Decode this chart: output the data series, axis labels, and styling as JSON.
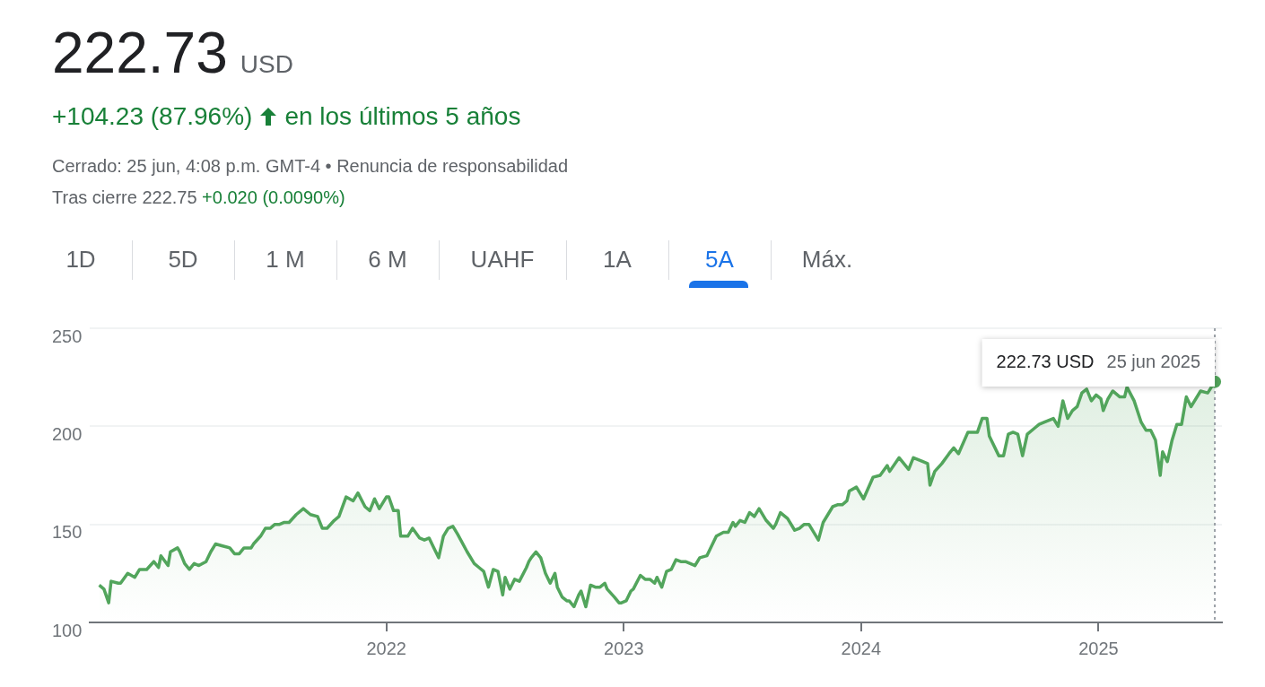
{
  "chart_data": {
    "type": "area",
    "title": "222.73 USD",
    "subtitle": "+104.23 (87.96%)",
    "annotations": [
      "en los últimos 5 años",
      "Cerrado: 25 jun, 4:08 p.m. GMT-4 • Renuncia de responsabilidad",
      "Tras cierre 222.75",
      "+0.020 (0.0090%)",
      "1D",
      "5D",
      "1 M",
      "6 M",
      "UAHF",
      "1A",
      "5A",
      "Máx.",
      "222.73 USD",
      "25 jun 2025"
    ],
    "series": [
      {
        "color": "#52a55c",
        "x": [
          2020.79,
          2020.81,
          2020.83,
          2020.84,
          2020.87,
          2020.88,
          2020.91,
          2020.94,
          2020.96,
          2020.99,
          2021.02,
          2021.04,
          2021.05,
          2021.08,
          2021.09,
          2021.12,
          2021.13,
          2021.15,
          2021.17,
          2021.19,
          2021.21,
          2021.24,
          2021.26,
          2021.28,
          2021.31,
          2021.34,
          2021.36,
          2021.38,
          2021.4,
          2021.43,
          2021.44,
          2021.47,
          2021.49,
          2021.51,
          2021.53,
          2021.55,
          2021.57,
          2021.59,
          2021.62,
          2021.65,
          2021.68,
          2021.71,
          2021.73,
          2021.75,
          2021.78,
          2021.8,
          2021.83,
          2021.86,
          2021.88,
          2021.91,
          2021.93,
          2021.95,
          2021.97,
          2022.0,
          2022.01,
          2022.03,
          2022.05,
          2022.06,
          2022.09,
          2022.11,
          2022.14,
          2022.16,
          2022.18,
          2022.2,
          2022.22,
          2022.24,
          2022.26,
          2022.28,
          2022.3,
          2022.34,
          2022.37,
          2022.39,
          2022.41,
          2022.43,
          2022.45,
          2022.47,
          2022.49,
          2022.5,
          2022.52,
          2022.54,
          2022.56,
          2022.59,
          2022.6,
          2022.61,
          2022.63,
          2022.65,
          2022.67,
          2022.69,
          2022.71,
          2022.72,
          2022.74,
          2022.76,
          2022.77,
          2022.79,
          2022.81,
          2022.82,
          2022.84,
          2022.86,
          2022.88,
          2022.9,
          2022.92,
          2022.93,
          2022.96,
          2022.98,
          2022.99,
          2023.01,
          2023.03,
          2023.04,
          2023.07,
          2023.09,
          2023.11,
          2023.13,
          2023.14,
          2023.16,
          2023.18,
          2023.2,
          2023.22,
          2023.24,
          2023.26,
          2023.3,
          2023.32,
          2023.35,
          2023.39,
          2023.42,
          2023.44,
          2023.46,
          2023.47,
          2023.49,
          2023.51,
          2023.53,
          2023.55,
          2023.57,
          2023.6,
          2023.63,
          2023.64,
          2023.66,
          2023.69,
          2023.72,
          2023.74,
          2023.76,
          2023.78,
          2023.82,
          2023.84,
          2023.88,
          2023.9,
          2023.92,
          2023.94,
          2023.95,
          2023.98,
          2024.01,
          2024.05,
          2024.08,
          2024.11,
          2024.12,
          2024.16,
          2024.2,
          2024.22,
          2024.26,
          2024.28,
          2024.29,
          2024.31,
          2024.34,
          2024.37,
          2024.39,
          2024.41,
          2024.45,
          2024.49,
          2024.51,
          2024.53,
          2024.54,
          2024.58,
          2024.6,
          2024.62,
          2024.64,
          2024.66,
          2024.68,
          2024.7,
          2024.73,
          2024.75,
          2024.77,
          2024.81,
          2024.83,
          2024.85,
          2024.87,
          2024.89,
          2024.91,
          2024.93,
          2024.95,
          2024.97,
          2024.99,
          2025.01,
          2025.02,
          2025.04,
          2025.06,
          2025.09,
          2025.11,
          2025.12,
          2025.15,
          2025.18,
          2025.2,
          2025.22,
          2025.24,
          2025.26,
          2025.27,
          2025.29,
          2025.31,
          2025.33,
          2025.35,
          2025.37,
          2025.39,
          2025.43,
          2025.46,
          2025.49
        ],
        "values": [
          119,
          117,
          110,
          121,
          120,
          120,
          125,
          123,
          127,
          127,
          131,
          128,
          134,
          129,
          136,
          138,
          136,
          130,
          127,
          130,
          129,
          131,
          136,
          140,
          139,
          138,
          135,
          135,
          138,
          138,
          140,
          144,
          148,
          148,
          150,
          150,
          151,
          151,
          155,
          158,
          155,
          154,
          148,
          148,
          152,
          154,
          164,
          162,
          166,
          159,
          157,
          163,
          158,
          164,
          164,
          157,
          157,
          144,
          144,
          148,
          143,
          142,
          143,
          138,
          133,
          144,
          148,
          149,
          145,
          136,
          130,
          128,
          126,
          118,
          127,
          126,
          114,
          123,
          117,
          122,
          121,
          128,
          131,
          133,
          136,
          133,
          125,
          120,
          125,
          118,
          113,
          111,
          111,
          108,
          114,
          116,
          108,
          119,
          118,
          118,
          120,
          117,
          113,
          110,
          110,
          111,
          116,
          117,
          124,
          122,
          122,
          120,
          123,
          118,
          126,
          127,
          132,
          131,
          131,
          129,
          133,
          134,
          144,
          146,
          146,
          151,
          149,
          152,
          151,
          156,
          154,
          158,
          152,
          148,
          150,
          156,
          153,
          147,
          148,
          150,
          150,
          142,
          151,
          159,
          160,
          160,
          162,
          167,
          169,
          163,
          174,
          175,
          180,
          177,
          184,
          178,
          184,
          182,
          181,
          170,
          177,
          181,
          186,
          189,
          186,
          197,
          197,
          204,
          204,
          195,
          185,
          185,
          196,
          197,
          196,
          185,
          196,
          199,
          201,
          202,
          204,
          200,
          213,
          204,
          208,
          210,
          217,
          219,
          213,
          216,
          214,
          208,
          214,
          218,
          215,
          215,
          220,
          213,
          202,
          198,
          198,
          193,
          175,
          187,
          182,
          193,
          201,
          201,
          215,
          210,
          218,
          217,
          222.73
        ]
      }
    ],
    "xlim": [
      2020.75,
      2025.52
    ],
    "xticks": [
      2022,
      2023,
      2024,
      2025
    ],
    "ylim": [
      100,
      250
    ],
    "yticks": [
      100,
      150,
      200,
      250
    ],
    "grid": "y",
    "legend": false,
    "marker": "none",
    "line_style": "solid",
    "ref_lines": [
      {
        "axis": "x",
        "value": 2025.49,
        "color": "#9aa0a6",
        "line_style": "dotted"
      }
    ]
  }
}
